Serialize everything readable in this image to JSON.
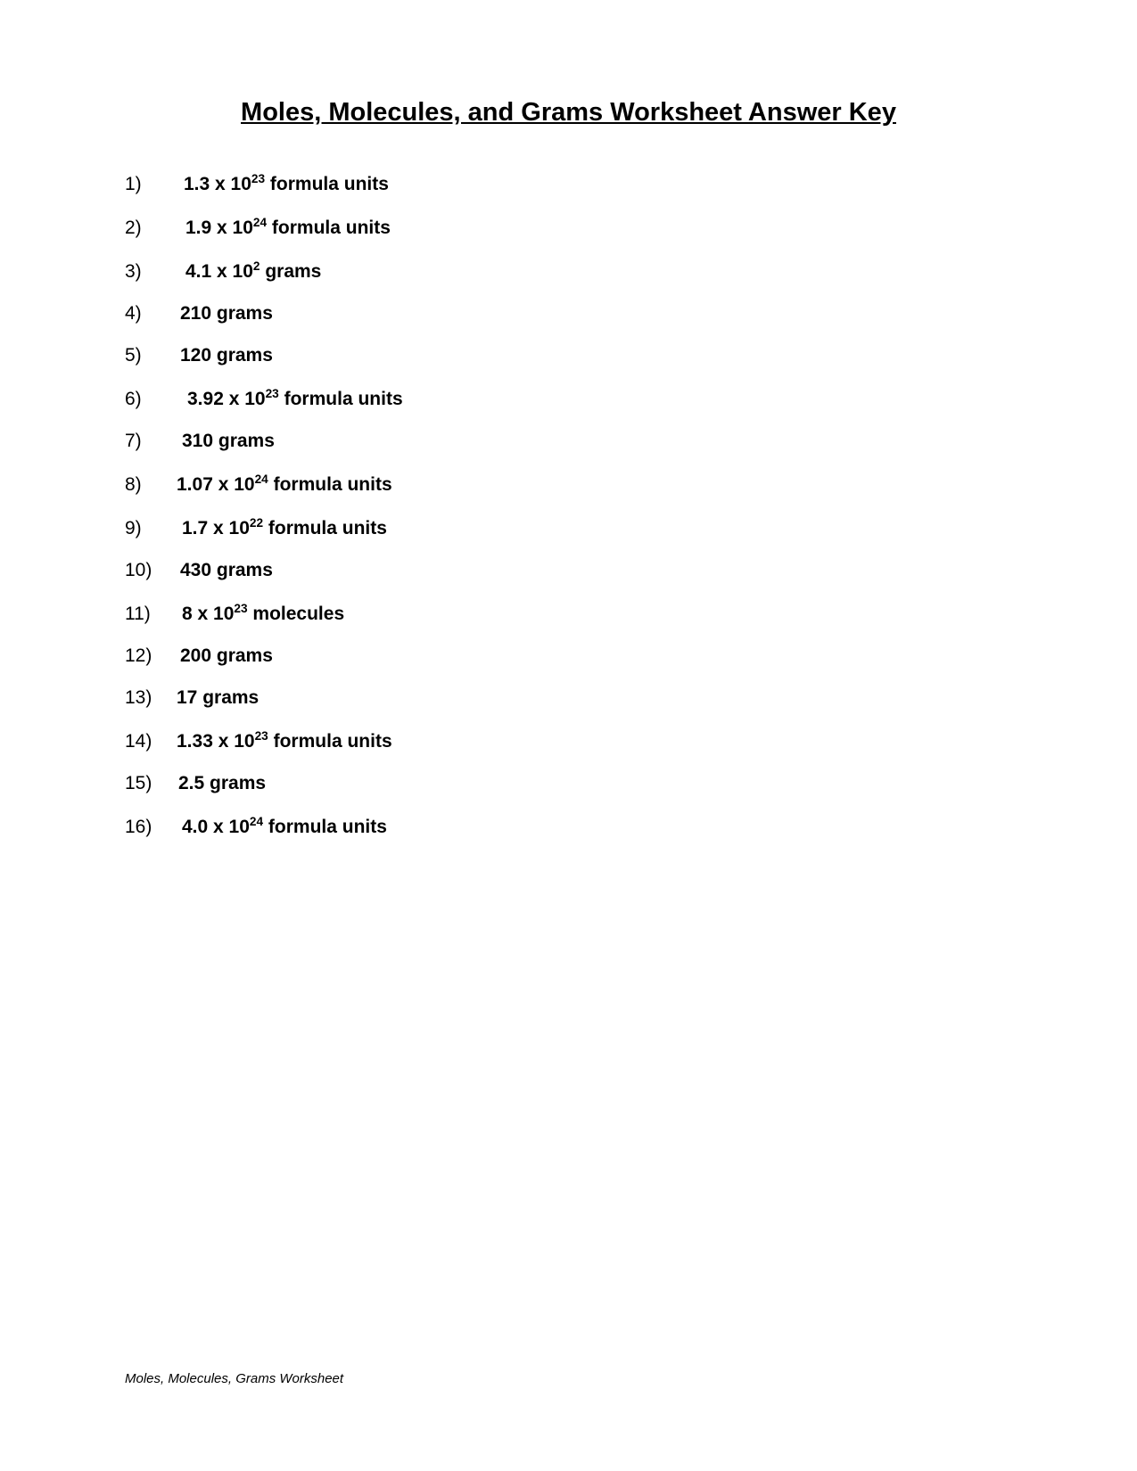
{
  "title": "Moles, Molecules, and Grams Worksheet  Answer Key",
  "answers": [
    {
      "number": "1)",
      "prefix": "1.3 x 10",
      "exp": "23",
      "suffix": " formula units",
      "padClass": "pad-a"
    },
    {
      "number": "2)",
      "prefix": "1.9 x 10",
      "exp": "24",
      "suffix": "  formula units",
      "padClass": "pad-b"
    },
    {
      "number": "3)",
      "prefix": "4.1 x 10",
      "exp": "2",
      "suffix": " grams",
      "padClass": "pad-b"
    },
    {
      "number": "4)",
      "prefix": "210 grams",
      "exp": "",
      "suffix": "",
      "padClass": "pad-c"
    },
    {
      "number": "5)",
      "prefix": "120 grams",
      "exp": "",
      "suffix": "",
      "padClass": "pad-c"
    },
    {
      "number": "6)",
      "prefix": "3.92 x 10",
      "exp": "23",
      "suffix": "  formula units",
      "padClass": "pad-e"
    },
    {
      "number": "7)",
      "prefix": "310 grams",
      "exp": "",
      "suffix": "",
      "padClass": "pad-f"
    },
    {
      "number": "8)",
      "prefix": "1.07 x 10",
      "exp": "24",
      "suffix": "  formula units",
      "padClass": "pad-d"
    },
    {
      "number": "9)",
      "prefix": "1.7 x 10",
      "exp": "22",
      "suffix": "  formula units",
      "padClass": "pad-f"
    },
    {
      "number": "10)",
      "prefix": "430 grams",
      "exp": "",
      "suffix": "",
      "padClass": "pad-c"
    },
    {
      "number": "11)",
      "prefix": "8 x 10",
      "exp": "23",
      "suffix": " molecules",
      "padClass": "pad-f"
    },
    {
      "number": "12)",
      "prefix": "200 grams",
      "exp": "",
      "suffix": "",
      "padClass": "pad-c"
    },
    {
      "number": "13)",
      "prefix": "17 grams",
      "exp": "",
      "suffix": "",
      "padClass": "pad-d"
    },
    {
      "number": "14)",
      "prefix": "1.33 x 10",
      "exp": "23",
      "suffix": "  formula units",
      "padClass": "pad-d"
    },
    {
      "number": "15)",
      "prefix": "2.5 grams",
      "exp": "",
      "suffix": "",
      "padClass": "pad-g"
    },
    {
      "number": "16)",
      "prefix": "4.0 x 10",
      "exp": "24",
      "suffix": "  formula units",
      "padClass": "pad-f"
    }
  ],
  "footer": "Moles, Molecules, Grams Worksheet",
  "colors": {
    "background": "#ffffff",
    "text": "#000000"
  },
  "typography": {
    "title_fontsize": 29,
    "body_fontsize": 21,
    "footer_fontsize": 15,
    "font_family": "Arial"
  }
}
